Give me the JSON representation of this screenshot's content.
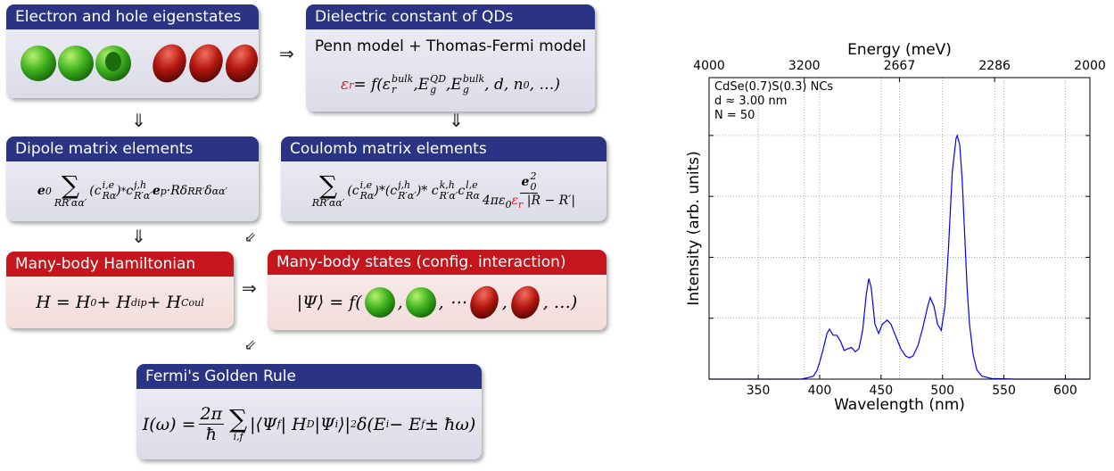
{
  "diagram": {
    "arrows": [
      "⇒",
      "⇓",
      "⇓",
      "⇓",
      "⇙",
      "⇒",
      "⇙"
    ],
    "boxes": [
      {
        "title": "Electron and hole eigenstates"
      },
      {
        "title": "Dielectric constant of QDs",
        "text": "Penn model + Thomas-Fermi model",
        "formula": [
          "ε",
          "r",
          " = f(",
          "ε",
          "bulk",
          "r",
          ", ",
          "E",
          "QD",
          "g",
          ", ",
          "E",
          "bulk",
          "g",
          ", d, n",
          "0",
          ", …)"
        ]
      },
      {
        "title": "Dipole matrix elements",
        "formula": [
          "e",
          "0",
          "∑",
          "RR′αα′",
          "(",
          "c",
          "i,e",
          "Rα",
          ")",
          "*",
          " c",
          "j,h",
          "R′α′",
          " e",
          "p",
          "·Rδ",
          "RR′",
          "δ",
          "αα′"
        ]
      },
      {
        "title": "Coulomb matrix elements",
        "formula": [
          "∑",
          "RR′αα′",
          "(c",
          "i,e",
          "Rα",
          ")*(c",
          "j,h",
          "R′α′",
          ")* c",
          "k,h",
          "R′α′",
          " c",
          "l,e",
          "Rα",
          "e",
          "2",
          "0",
          "4πε",
          "0",
          "ε",
          "r",
          " |R − R′|"
        ]
      },
      {
        "title": "Many-body Hamiltonian",
        "formula": [
          "H = H",
          "0",
          " + H",
          "dip",
          " + H",
          "Coul"
        ]
      },
      {
        "title": "Many-body states (config. interaction)",
        "formula": [
          "|Ψ⟩ = f(",
          ",",
          ", ⋯",
          ",",
          ", …)"
        ]
      },
      {
        "title": "Fermi's Golden Rule",
        "formula": [
          "I(ω) = ",
          "2π",
          "ħ",
          "∑",
          "i,f",
          "|⟨Ψ",
          "f",
          "| H",
          "D",
          " |Ψ",
          "i",
          "⟩|",
          "2",
          " δ(E",
          "i",
          " − E",
          "f",
          " ± ħω)"
        ]
      }
    ]
  },
  "chart_data": {
    "type": "line",
    "x_label": "Wavelength (nm)",
    "y_label": "Intensity (arb. units)",
    "x2_label": "Energy (meV)",
    "annotations": [
      "CdSe(0.7)S(0.3) NCs",
      "d ≈ 3.00 nm",
      "N = 50"
    ],
    "x": [
      310,
      380,
      385,
      390,
      395,
      398,
      400,
      403,
      406,
      408,
      411,
      414,
      417,
      420,
      423,
      426,
      429,
      432,
      435,
      438,
      440,
      442,
      445,
      448,
      451,
      455,
      458,
      462,
      466,
      470,
      473,
      476,
      480,
      484,
      488,
      490,
      493,
      496,
      499,
      502,
      505,
      508,
      511,
      512,
      514,
      516,
      518,
      520,
      522,
      525,
      528,
      532,
      540,
      560,
      620
    ],
    "values": [
      0,
      0,
      0,
      0.02,
      0.05,
      0.15,
      0.28,
      0.5,
      0.75,
      0.82,
      0.72,
      0.72,
      0.62,
      0.47,
      0.5,
      0.52,
      0.45,
      0.5,
      0.8,
      1.4,
      1.65,
      1.5,
      0.9,
      0.75,
      0.9,
      0.97,
      0.9,
      0.7,
      0.5,
      0.38,
      0.35,
      0.38,
      0.55,
      0.85,
      1.2,
      1.34,
      1.2,
      0.9,
      0.8,
      1.2,
      2.2,
      3.4,
      3.95,
      4.0,
      3.85,
      3.3,
      2.4,
      1.5,
      0.9,
      0.4,
      0.15,
      0.05,
      0.01,
      0,
      0
    ],
    "color": "#0000ff",
    "xlim": [
      310,
      620
    ],
    "xticks": [
      350,
      400,
      450,
      500,
      550,
      600
    ],
    "ylim": [
      0,
      4.95
    ],
    "yticks": [
      1,
      2,
      3,
      4
    ],
    "x2lim": [
      4000,
      2000
    ],
    "x2ticks": [
      4000,
      3200,
      2667,
      2286,
      2000
    ],
    "x2scale": "reciprocal",
    "grid": true
  }
}
